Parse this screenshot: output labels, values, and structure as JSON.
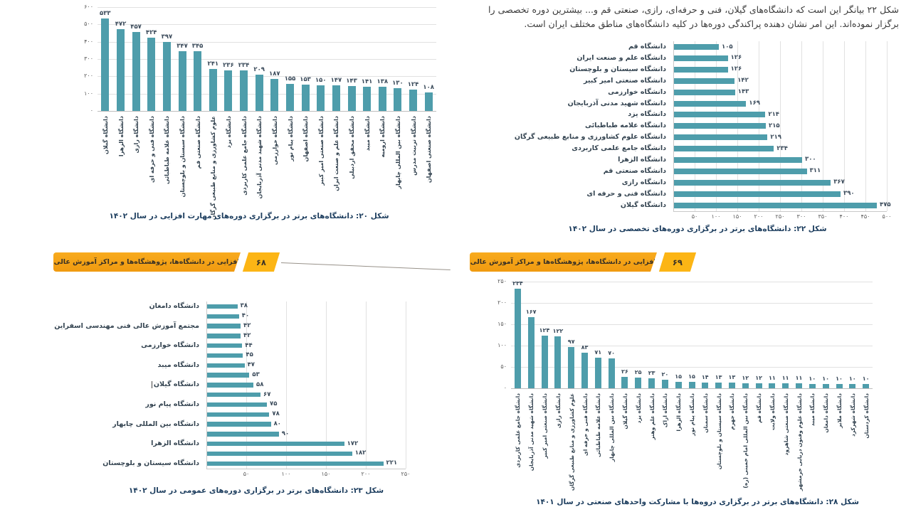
{
  "page": {
    "intro_text": "شکل ۲۲ بیانگر این است که دانشگاه‌های گیلان، فنی و حرفه‌ای، رازی، صنعتی قم و... بیشترین دوره تخصصی را برگزار نموده‌اند. این امر نشان دهنده پراکندگی دوره‌ها در کلیه دانشگاه‌های مناطق مختلف ایران است.",
    "banners": [
      {
        "label": "مهارت‌افزایی در دانشگاه‌ها، پژوهشگاه‌ها و مراکز آموزش عالی کشور",
        "page_number": "۶۸"
      },
      {
        "label": "مهارت‌افزایی در دانشگاه‌ها، پژوهشگاه‌ها و مراکز آموزش عالی کشور",
        "page_number": "۶۹"
      }
    ],
    "colors": {
      "bar": "#4e9dab",
      "caption": "#1c3d5e",
      "banner_orange": "#f5a21c",
      "banner_yellow": "#fcb515",
      "grid": "#e1e1e1",
      "value_label": "#3a4a5a"
    }
  },
  "chart_data": [
    {
      "type": "bar",
      "orientation": "vertical",
      "caption": "شکل ۲۰: دانشگاه‌های برتر در برگزاری دوره‌های مهارت افزایی در سال ۱۴۰۲",
      "categories": [
        "دانشگاه گیلان",
        "دانشگاه الزهرا",
        "دانشگاه رازی",
        "دانشگاه فنی و حرفه ای",
        "دانشگاه علامه طباطبائی",
        "دانشگاه سیستان و بلوچستان",
        "دانشگاه صنعتی قم",
        "علوم کشاورزی و منابع طبیعی گرگان",
        "دانشگاه یزد",
        "دانشگاه جامع علمی کاربردی",
        "دانشگاه شهید مدنی آذربایجان",
        "دانشگاه خوارزمی",
        "دانشگاه پیام نور",
        "دانشگاه اصفهان",
        "دانشگاه صنعتی امیر کبیر",
        "دانشگاه علم و صنعت ایران",
        "دانشگاه محقق اردبیلی",
        "دانشگاه میبد",
        "دانشگاه ارومیه",
        "دانشگاه بین المللی چابهار",
        "دانشگاه تربیت مدرس",
        "دانشگاه صنعتی اصفهان"
      ],
      "values": [
        533,
        472,
        457,
        424,
        397,
        347,
        345,
        241,
        236,
        234,
        209,
        187,
        155,
        153,
        150,
        147,
        143,
        141,
        138,
        130,
        124,
        108
      ],
      "ylim": [
        0,
        600
      ],
      "yticks": [
        0,
        100,
        200,
        300,
        400,
        500,
        600
      ],
      "grid": true,
      "digits": "persian"
    },
    {
      "type": "bar",
      "orientation": "horizontal",
      "caption": "شکل ۲۲: دانشگاه‌های برتر در برگزاری دوره‌های تخصصی در سال ۱۴۰۲",
      "categories": [
        "دانشگاه قم",
        "دانشگاه علم و صنعت ایران",
        "دانشگاه سیستان و بلوچستان",
        "دانشگاه صنعتی امیر کبیر",
        "دانشگاه خوارزمی",
        "دانشگاه شهید مدنی آذربایجان",
        "دانشگاه یزد",
        "دانشگاه علامه طباطبائی",
        "دانشگاه علوم کشاورزی و منابع طبیعی گرگان",
        "دانشگاه جامع علمی کاربردی",
        "دانشگاه الزهرا",
        "دانشگاه صنعتی قم",
        "دانشگاه رازی",
        "دانشگاه فنی و حرفه ای",
        "دانشگاه گیلان"
      ],
      "values": [
        105,
        126,
        126,
        142,
        143,
        169,
        214,
        215,
        219,
        234,
        300,
        311,
        367,
        390,
        475
      ],
      "xlim": [
        0,
        500
      ],
      "xticks": [
        50,
        100,
        150,
        200,
        250,
        300,
        350,
        400,
        450,
        500
      ],
      "grid": true,
      "digits": "persian"
    },
    {
      "type": "bar",
      "orientation": "horizontal",
      "caption": "شکل ۲۳: دانشگاه‌های برتر در برگزاری دوره‌های عمومی در سال ۱۴۰۲",
      "categories": [
        "دانشگاه دامغان",
        "",
        "مجتمع آموزش عالی فنی مهندسی اسفراین",
        "",
        "دانشگاه خوارزمی",
        "",
        "دانشگاه میبد",
        "",
        "دانشگاه گیلان",
        "",
        "دانشگاه پیام نور",
        "",
        "دانشگاه بین المللی چابهار",
        "",
        "دانشگاه الزهرا",
        "",
        "دانشگاه سیستان و بلوچستان"
      ],
      "values": [
        38,
        40,
        42,
        42,
        44,
        45,
        47,
        53,
        58,
        67,
        75,
        78,
        80,
        90,
        172,
        182,
        221
      ],
      "xlim": [
        0,
        250
      ],
      "xticks": [
        50,
        100,
        150,
        200,
        250
      ],
      "grid": true,
      "digits": "persian"
    },
    {
      "type": "bar",
      "orientation": "vertical",
      "caption": "شکل ۲۸: دانشگاه‌های برتر در برگزاری دروه‌ها با مشارکت واحدهای صنعتی در سال ۱۴۰۱",
      "categories": [
        "دانشگاه جامع علمی کاربردی",
        "دانشگاه شهید مدنی آذربایجان",
        "دانشگاه صنعتی امیر کبیر",
        "دانشگاه رازی",
        "علوم کشاورزی و منابع طبیعی گرگان",
        "دانشگاه فنی و حرفه ای",
        "دانشگاه علامه طباطبائی",
        "دانشگاه بین المللی چابهار",
        "دانشگاه گیلان",
        "دانشگاه یزد",
        "دانشگاه علم وهنر",
        "دانشگاه اراک",
        "دانشگاه الزهرا",
        "دانشگاه پیام نور",
        "دانشگاه سمنان",
        "دانشگاه سیستان و بلوچستان",
        "دانشگاه جهرم",
        "دانشگاه بین المللی امام خمینی (ره)",
        "دانشگاه قم",
        "دانشگاه ولایت",
        "دانشگاه صنعتی شاهرود",
        "دانشگاه علوم وفنون دریایی خرمشهر",
        "دانشگاه میبد",
        "دانشگاه دامغان",
        "دانشگاه ملایر",
        "دانشگاه شهرکرد",
        "دانشگاه کردستان"
      ],
      "values": [
        234,
        167,
        124,
        122,
        97,
        83,
        71,
        70,
        26,
        25,
        23,
        20,
        15,
        15,
        14,
        13,
        13,
        12,
        12,
        11,
        11,
        11,
        10,
        10,
        10,
        10,
        10
      ],
      "ylim": [
        0,
        250
      ],
      "yticks": [
        0,
        50,
        100,
        150,
        200,
        250
      ],
      "grid": true,
      "digits": "persian"
    }
  ]
}
